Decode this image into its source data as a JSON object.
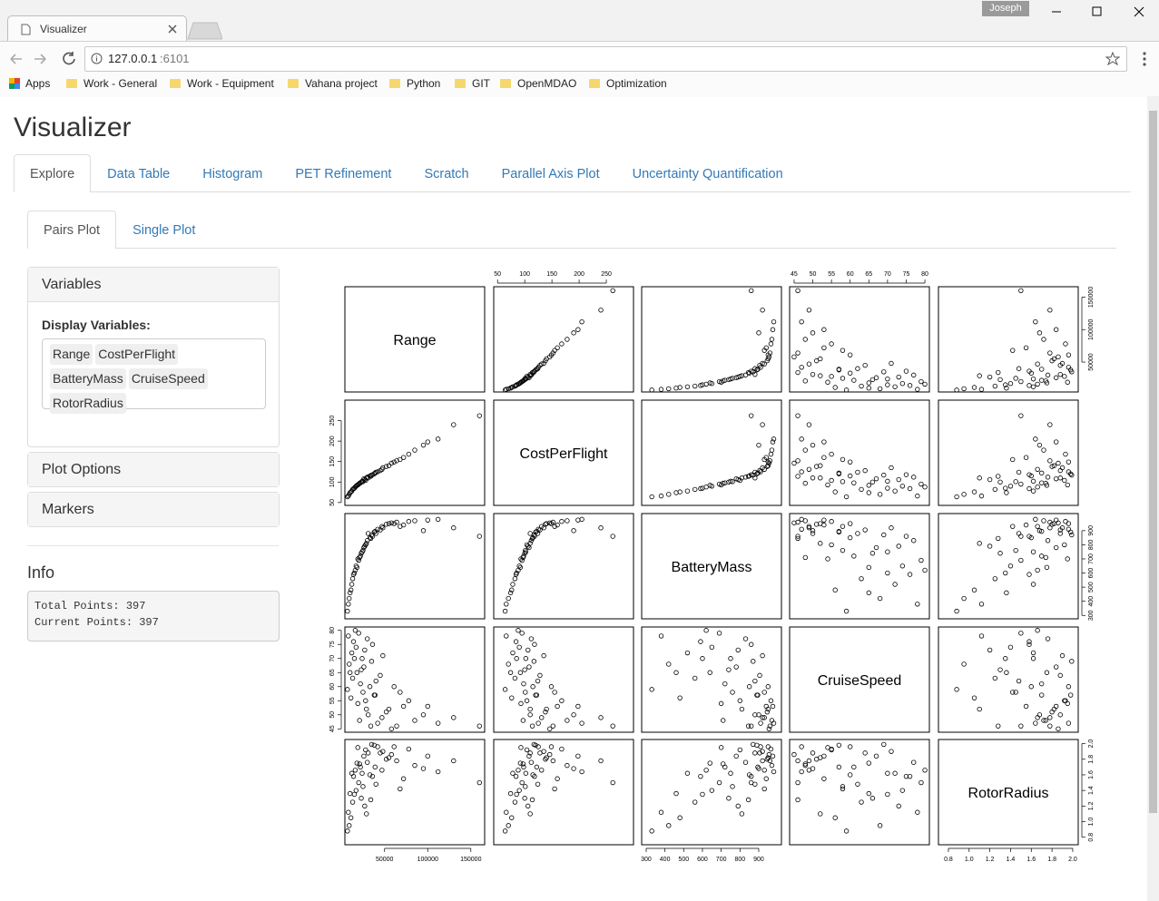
{
  "browser": {
    "tab_title": "Visualizer",
    "user": "Joseph",
    "url_host": "127.0.0.1",
    "url_port": ":6101",
    "bookmarks": [
      "Apps",
      "Work - General",
      "Work - Equipment",
      "Vahana project",
      "Python",
      "GIT",
      "OpenMDAO",
      "Optimization"
    ]
  },
  "app": {
    "title": "Visualizer",
    "tabs": [
      "Explore",
      "Data Table",
      "Histogram",
      "PET Refinement",
      "Scratch",
      "Parallel Axis Plot",
      "Uncertainty Quantification"
    ],
    "active_tab": 0,
    "subtabs": [
      "Pairs Plot",
      "Single Plot"
    ],
    "active_subtab": 0,
    "variables_panel": {
      "heading": "Variables",
      "label": "Display Variables:",
      "selected": [
        "Range",
        "CostPerFlight",
        "BatteryMass",
        "CruiseSpeed",
        "RotorRadius"
      ]
    },
    "collapsed_panels": [
      "Plot Options",
      "Markers"
    ],
    "info": {
      "heading": "Info",
      "lines": [
        {
          "label": "Total Points:",
          "value": 397
        },
        {
          "label": "Current Points:",
          "value": 397
        }
      ]
    }
  },
  "chart_data": {
    "type": "pairs",
    "variables": [
      {
        "name": "Range",
        "lim": [
          4000,
          166000
        ],
        "ticks": [
          50000,
          100000,
          150000
        ],
        "values": [
          12000,
          18000,
          25000,
          31000,
          8000,
          42000,
          15000,
          22000,
          55000,
          36000,
          9000,
          28000,
          47000,
          64000,
          20000,
          13000,
          38000,
          72000,
          26000,
          17000,
          85000,
          33000,
          11000,
          48000,
          95000,
          23000,
          58000,
          30000,
          7000,
          40000,
          19000,
          112000,
          27000,
          52000,
          14000,
          35000,
          68000,
          21000,
          45000,
          160000,
          16000,
          29000,
          78000,
          10000,
          39000,
          130000,
          24000,
          61000,
          34000,
          100000
        ]
      },
      {
        "name": "CostPerFlight",
        "lim": [
          43,
          300
        ],
        "ticks": [
          50,
          100,
          150,
          200,
          250
        ],
        "values": [
          78,
          92,
          101,
          110,
          66,
          125,
          85,
          98,
          140,
          118,
          70,
          104,
          131,
          152,
          95,
          82,
          120,
          160,
          108,
          90,
          178,
          115,
          76,
          135,
          190,
          100,
          146,
          112,
          64,
          124,
          93,
          205,
          106,
          138,
          84,
          117,
          155,
          97,
          128,
          262,
          88,
          110,
          168,
          74,
          122,
          240,
          102,
          149,
          114,
          198
        ]
      },
      {
        "name": "BatteryMass",
        "lim": [
          276,
          1021
        ],
        "ticks": [
          300,
          400,
          500,
          600,
          700,
          800,
          900
        ],
        "values": [
          520,
          640,
          760,
          880,
          380,
          910,
          600,
          720,
          950,
          860,
          420,
          800,
          930,
          960,
          690,
          560,
          890,
          940,
          780,
          650,
          970,
          850,
          480,
          920,
          900,
          740,
          955,
          830,
          330,
          880,
          700,
          980,
          790,
          945,
          590,
          870,
          930,
          710,
          905,
          860,
          620,
          810,
          965,
          460,
          895,
          920,
          750,
          950,
          845,
          975
        ]
      },
      {
        "name": "CruiseSpeed",
        "lim": [
          43.8,
          81.2
        ],
        "ticks": [
          45,
          50,
          55,
          60,
          65,
          70,
          75,
          80
        ],
        "values": [
          72,
          65,
          58,
          50,
          78,
          47,
          70,
          61,
          52,
          75,
          68,
          55,
          49,
          46,
          79,
          63,
          57,
          53,
          67,
          74,
          48,
          60,
          56,
          71,
          50,
          66,
          45,
          77,
          59,
          62,
          54,
          47,
          73,
          51,
          76,
          69,
          58,
          48,
          64,
          46,
          80,
          52,
          55,
          65,
          57,
          49,
          70,
          60,
          46,
          53
        ]
      },
      {
        "name": "RotorRadius",
        "lim": [
          0.704,
          2.053
        ],
        "ticks": [
          0.8,
          {
            "value": 1.0,
            "label": "1.0"
          },
          1.2,
          1.4,
          1.6,
          1.8,
          {
            "value": 2.0,
            "label": "2.0"
          }
        ],
        "values": [
          1.62,
          1.75,
          1.45,
          1.88,
          1.12,
          1.96,
          1.35,
          1.7,
          1.82,
          1.58,
          0.95,
          1.92,
          1.66,
          1.78,
          1.5,
          1.25,
          1.98,
          1.55,
          1.84,
          1.4,
          1.72,
          1.6,
          1.05,
          1.9,
          1.68,
          1.3,
          1.86,
          1.76,
          0.88,
          1.48,
          1.95,
          1.64,
          1.2,
          1.8,
          1.58,
          1.99,
          1.42,
          1.74,
          1.88,
          1.5,
          1.66,
          1.1,
          1.93,
          1.36,
          1.7,
          1.78,
          1.62,
          1.96,
          1.28,
          1.84
        ]
      }
    ]
  }
}
